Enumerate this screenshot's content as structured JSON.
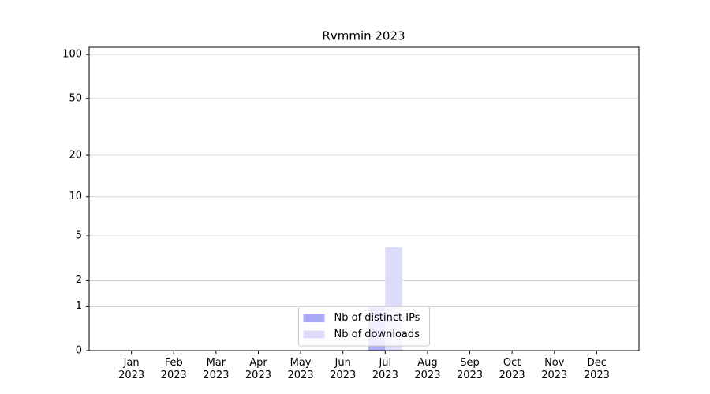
{
  "chart_data": {
    "type": "bar",
    "title": "Rvmmin 2023",
    "categories": [
      "Jan\n2023",
      "Feb\n2023",
      "Mar\n2023",
      "Apr\n2023",
      "May\n2023",
      "Jun\n2023",
      "Jul\n2023",
      "Aug\n2023",
      "Sep\n2023",
      "Oct\n2023",
      "Nov\n2023",
      "Dec\n2023"
    ],
    "series": [
      {
        "name": "Nb of distinct IPs",
        "color": "#aaaaf8",
        "values": [
          0,
          0,
          0,
          0,
          0,
          0,
          1,
          0,
          0,
          0,
          0,
          0
        ]
      },
      {
        "name": "Nb of downloads",
        "color": "#dcdcfa",
        "values": [
          0,
          0,
          0,
          0,
          0,
          0,
          4,
          0,
          0,
          0,
          0,
          0
        ]
      }
    ],
    "yscale": "log1p",
    "ylim": [
      0,
      112
    ],
    "yticks": [
      0,
      1,
      2,
      5,
      10,
      20,
      50,
      100
    ],
    "grid": true,
    "legend": "lower center"
  }
}
